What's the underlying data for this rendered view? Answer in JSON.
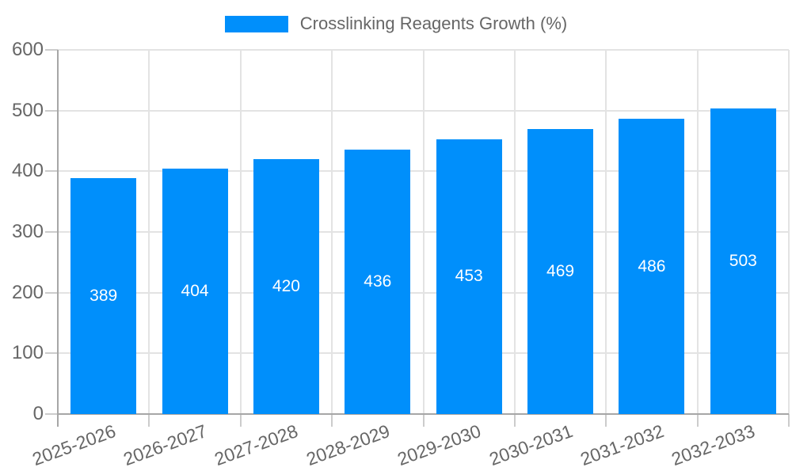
{
  "legend": {
    "label": "Crosslinking Reagents Growth (%)"
  },
  "chart_data": {
    "type": "bar",
    "title": "Crosslinking Reagents Growth (%)",
    "categories": [
      "2025-2026",
      "2026-2027",
      "2027-2028",
      "2028-2029",
      "2029-2030",
      "2030-2031",
      "2031-2032",
      "2032-2033"
    ],
    "values": [
      389,
      404,
      420,
      436,
      453,
      469,
      486,
      503
    ],
    "data_labels": [
      "389",
      "404",
      "420",
      "436",
      "453",
      "469",
      "486",
      "503"
    ],
    "xlabel": "",
    "ylabel": "",
    "ylim": [
      0,
      600
    ],
    "yticks": [
      "0",
      "100",
      "200",
      "300",
      "400",
      "500",
      "600"
    ],
    "ytick_step": 100,
    "grid": true,
    "legend_position": "top",
    "x_label_rotation_deg": -20,
    "colors": {
      "bar": "#008FFB",
      "bar_value_text": "#ffffff",
      "axis_text": "#666666",
      "legend_text": "#666666",
      "grid_line": "#e3e3e3",
      "tick_line": "#cccccc",
      "axis_line": "#a6a6a6",
      "background": "#ffffff"
    }
  }
}
